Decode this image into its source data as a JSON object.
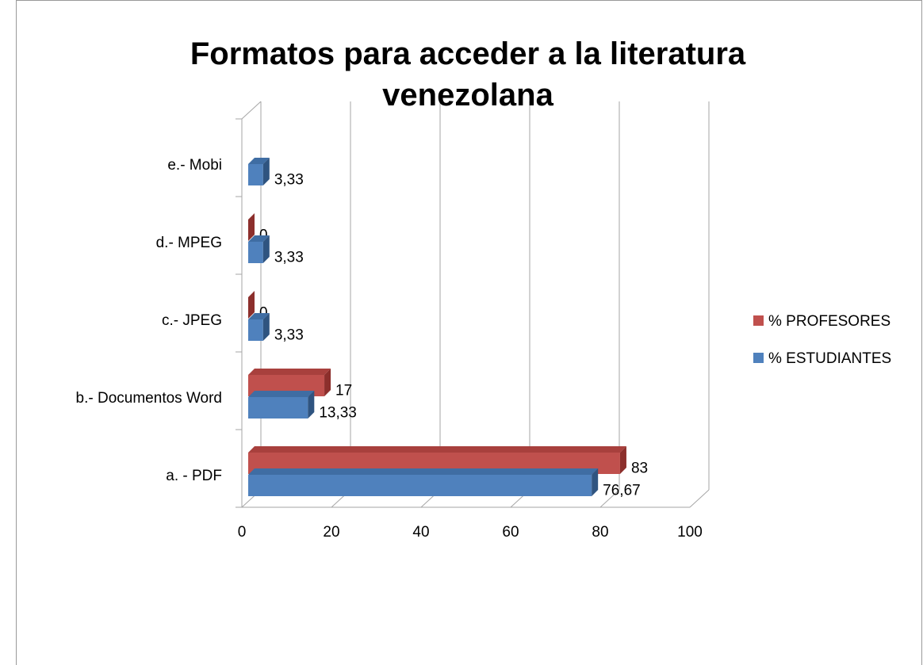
{
  "chart_data": {
    "type": "bar3d_horizontal",
    "title": "Formatos para acceder a la literatura venezolana",
    "categories": [
      "a. - PDF",
      "b.- Documentos Word",
      "c.- JPEG",
      "d.- MPEG",
      "e.-  Mobi"
    ],
    "series": [
      {
        "name": "% PROFESORES",
        "color": "#c0504d",
        "values": [
          83,
          17,
          0,
          0,
          null
        ]
      },
      {
        "name": "% ESTUDIANTES",
        "color": "#4f81bd",
        "values": [
          76.67,
          13.33,
          3.33,
          3.33,
          3.33
        ],
        "value_labels": [
          "76,67",
          "13,33",
          "3,33",
          "3,33",
          "3,33"
        ]
      }
    ],
    "xlim": [
      0,
      100
    ],
    "xticks": [
      0,
      20,
      40,
      60,
      80,
      100
    ],
    "grid": true,
    "legend": "right"
  }
}
